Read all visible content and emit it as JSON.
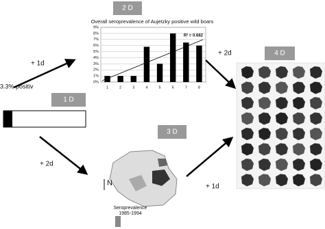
{
  "steps": [
    {
      "label": "1 D"
    },
    {
      "label": "2 D"
    },
    {
      "label": "3 D"
    },
    {
      "label": "4 D"
    }
  ],
  "transitions": [
    {
      "label": "+ 1d"
    },
    {
      "label": "+ 2d"
    },
    {
      "label": "+ 2d"
    },
    {
      "label": "+ 1d"
    }
  ],
  "start_label": "3.3% positiv",
  "bar_chart": {
    "type": "bar",
    "title": "Overall seroprevalence of Aujetzky positive wild boars",
    "categories": [
      "1",
      "2",
      "3",
      "4",
      "5",
      "6",
      "7",
      "8"
    ],
    "values": [
      1,
      1,
      1,
      5.8,
      3,
      8,
      6.5,
      6
    ],
    "color": "#000000",
    "ylim": [
      0,
      9
    ],
    "yticks": [
      {
        "value": 0,
        "label": "0%"
      },
      {
        "value": 1,
        "label": "1%"
      },
      {
        "value": 2,
        "label": "2%"
      },
      {
        "value": 3,
        "label": "3%"
      },
      {
        "value": 4,
        "label": "4%"
      },
      {
        "value": 5,
        "label": "5%"
      },
      {
        "value": 6,
        "label": "6%"
      },
      {
        "value": 7,
        "label": "7%"
      },
      {
        "value": 8,
        "label": "8%"
      },
      {
        "value": 9,
        "label": "9%"
      }
    ],
    "annotation": "R² = 0.682"
  },
  "map": {
    "north": "N",
    "legend_title": "Seroprevalence",
    "legend_period": "1985-1994"
  }
}
